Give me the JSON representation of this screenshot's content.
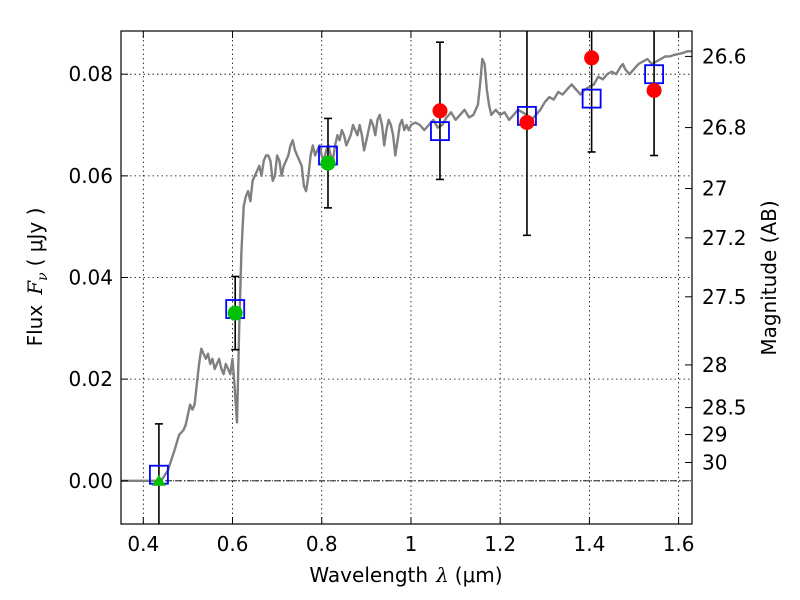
{
  "chart_data": {
    "type": "scatter",
    "xlabel_text": "Wavelength",
    "xlabel_math": "λ",
    "xlabel_unit": "(μm)",
    "ylabel_text": "Flux",
    "ylabel_math": "F",
    "ylabel_sub": "ν",
    "ylabel_unit": "( μJy )",
    "y2label": "Magnitude (AB)",
    "xlim": [
      0.35,
      1.63
    ],
    "ylim": [
      -0.0085,
      0.0885
    ],
    "xticks": [
      {
        "value": 0.4,
        "label": "0.4"
      },
      {
        "value": 0.6,
        "label": "0.6"
      },
      {
        "value": 0.8,
        "label": "0.8"
      },
      {
        "value": 1.0,
        "label": "1"
      },
      {
        "value": 1.2,
        "label": "1.2"
      },
      {
        "value": 1.4,
        "label": "1.4"
      },
      {
        "value": 1.6,
        "label": "1.6"
      }
    ],
    "yticks": [
      {
        "value": 0.0,
        "label": "0.00"
      },
      {
        "value": 0.02,
        "label": "0.02"
      },
      {
        "value": 0.04,
        "label": "0.04"
      },
      {
        "value": 0.06,
        "label": "0.06"
      },
      {
        "value": 0.08,
        "label": "0.08"
      }
    ],
    "magnitude_ticks": [
      {
        "flux": 0.0835,
        "label": "26.6"
      },
      {
        "flux": 0.0695,
        "label": "26.8"
      },
      {
        "flux": 0.0575,
        "label": "27"
      },
      {
        "flux": 0.0478,
        "label": "27.2"
      },
      {
        "flux": 0.0362,
        "label": "27.5"
      },
      {
        "flux": 0.0228,
        "label": "28"
      },
      {
        "flux": 0.0144,
        "label": "28.5"
      },
      {
        "flux": 0.0091,
        "label": "29"
      },
      {
        "flux": 0.0036,
        "label": "30"
      }
    ],
    "grid": true,
    "colors": {
      "model": "#808080",
      "model_box": "#0000ff",
      "observed_red": "#ff0000",
      "observed_green": "#00c000",
      "upper_limit": "#00c000",
      "error_bar": "#000000",
      "zero_line": "#000000"
    },
    "model_spectrum": [
      [
        0.35,
        0.0
      ],
      [
        0.44,
        0.0
      ],
      [
        0.455,
        0.002
      ],
      [
        0.47,
        0.006
      ],
      [
        0.48,
        0.009
      ],
      [
        0.49,
        0.01
      ],
      [
        0.495,
        0.011
      ],
      [
        0.5,
        0.013
      ],
      [
        0.505,
        0.015
      ],
      [
        0.51,
        0.014
      ],
      [
        0.515,
        0.015
      ],
      [
        0.52,
        0.019
      ],
      [
        0.525,
        0.023
      ],
      [
        0.53,
        0.026
      ],
      [
        0.535,
        0.025
      ],
      [
        0.54,
        0.024
      ],
      [
        0.545,
        0.025
      ],
      [
        0.55,
        0.023
      ],
      [
        0.555,
        0.024
      ],
      [
        0.56,
        0.022
      ],
      [
        0.565,
        0.023
      ],
      [
        0.57,
        0.024
      ],
      [
        0.575,
        0.022
      ],
      [
        0.58,
        0.021
      ],
      [
        0.585,
        0.023
      ],
      [
        0.59,
        0.022
      ],
      [
        0.595,
        0.021
      ],
      [
        0.6,
        0.024
      ],
      [
        0.605,
        0.018
      ],
      [
        0.61,
        0.0115
      ],
      [
        0.615,
        0.03
      ],
      [
        0.62,
        0.045
      ],
      [
        0.625,
        0.054
      ],
      [
        0.63,
        0.056
      ],
      [
        0.635,
        0.057
      ],
      [
        0.64,
        0.055
      ],
      [
        0.645,
        0.059
      ],
      [
        0.65,
        0.06
      ],
      [
        0.655,
        0.061
      ],
      [
        0.66,
        0.062
      ],
      [
        0.665,
        0.06
      ],
      [
        0.67,
        0.063
      ],
      [
        0.675,
        0.064
      ],
      [
        0.68,
        0.064
      ],
      [
        0.685,
        0.063
      ],
      [
        0.69,
        0.059
      ],
      [
        0.695,
        0.06
      ],
      [
        0.7,
        0.064
      ],
      [
        0.705,
        0.063
      ],
      [
        0.71,
        0.06
      ],
      [
        0.715,
        0.062
      ],
      [
        0.72,
        0.063
      ],
      [
        0.725,
        0.064
      ],
      [
        0.73,
        0.066
      ],
      [
        0.735,
        0.067
      ],
      [
        0.74,
        0.065
      ],
      [
        0.745,
        0.064
      ],
      [
        0.75,
        0.063
      ],
      [
        0.755,
        0.062
      ],
      [
        0.76,
        0.058
      ],
      [
        0.765,
        0.057
      ],
      [
        0.77,
        0.06
      ],
      [
        0.775,
        0.064
      ],
      [
        0.78,
        0.066
      ],
      [
        0.785,
        0.064
      ],
      [
        0.79,
        0.065
      ],
      [
        0.795,
        0.066
      ],
      [
        0.8,
        0.064
      ],
      [
        0.805,
        0.063
      ],
      [
        0.81,
        0.065
      ],
      [
        0.815,
        0.066
      ],
      [
        0.82,
        0.064
      ],
      [
        0.825,
        0.063
      ],
      [
        0.83,
        0.066
      ],
      [
        0.835,
        0.068
      ],
      [
        0.84,
        0.067
      ],
      [
        0.845,
        0.069
      ],
      [
        0.85,
        0.068
      ],
      [
        0.855,
        0.066
      ],
      [
        0.86,
        0.067
      ],
      [
        0.865,
        0.068
      ],
      [
        0.87,
        0.07
      ],
      [
        0.875,
        0.069
      ],
      [
        0.88,
        0.068
      ],
      [
        0.885,
        0.07
      ],
      [
        0.89,
        0.068
      ],
      [
        0.895,
        0.065
      ],
      [
        0.9,
        0.067
      ],
      [
        0.905,
        0.069
      ],
      [
        0.91,
        0.071
      ],
      [
        0.915,
        0.07
      ],
      [
        0.92,
        0.068
      ],
      [
        0.925,
        0.071
      ],
      [
        0.93,
        0.072
      ],
      [
        0.935,
        0.07
      ],
      [
        0.94,
        0.066
      ],
      [
        0.945,
        0.069
      ],
      [
        0.95,
        0.071
      ],
      [
        0.955,
        0.07
      ],
      [
        0.96,
        0.068
      ],
      [
        0.965,
        0.064
      ],
      [
        0.97,
        0.067
      ],
      [
        0.975,
        0.07
      ],
      [
        0.98,
        0.071
      ],
      [
        0.985,
        0.069
      ],
      [
        0.99,
        0.07
      ],
      [
        0.995,
        0.069
      ],
      [
        1.0,
        0.07
      ],
      [
        1.01,
        0.0705
      ],
      [
        1.02,
        0.07
      ],
      [
        1.03,
        0.069
      ],
      [
        1.04,
        0.07
      ],
      [
        1.05,
        0.071
      ],
      [
        1.06,
        0.0695
      ],
      [
        1.07,
        0.07
      ],
      [
        1.08,
        0.0715
      ],
      [
        1.09,
        0.0725
      ],
      [
        1.1,
        0.071
      ],
      [
        1.11,
        0.072
      ],
      [
        1.12,
        0.073
      ],
      [
        1.13,
        0.0715
      ],
      [
        1.14,
        0.072
      ],
      [
        1.15,
        0.074
      ],
      [
        1.155,
        0.078
      ],
      [
        1.16,
        0.083
      ],
      [
        1.165,
        0.082
      ],
      [
        1.17,
        0.077
      ],
      [
        1.175,
        0.074
      ],
      [
        1.18,
        0.072
      ],
      [
        1.19,
        0.073
      ],
      [
        1.2,
        0.072
      ],
      [
        1.21,
        0.0725
      ],
      [
        1.22,
        0.071
      ],
      [
        1.23,
        0.072
      ],
      [
        1.24,
        0.073
      ],
      [
        1.25,
        0.0725
      ],
      [
        1.26,
        0.072
      ],
      [
        1.27,
        0.071
      ],
      [
        1.28,
        0.072
      ],
      [
        1.29,
        0.073
      ],
      [
        1.3,
        0.0745
      ],
      [
        1.31,
        0.0755
      ],
      [
        1.32,
        0.075
      ],
      [
        1.33,
        0.0765
      ],
      [
        1.34,
        0.076
      ],
      [
        1.35,
        0.077
      ],
      [
        1.36,
        0.078
      ],
      [
        1.37,
        0.077
      ],
      [
        1.38,
        0.076
      ],
      [
        1.39,
        0.077
      ],
      [
        1.4,
        0.0775
      ],
      [
        1.41,
        0.078
      ],
      [
        1.42,
        0.0795
      ],
      [
        1.43,
        0.079
      ],
      [
        1.44,
        0.08
      ],
      [
        1.45,
        0.0805
      ],
      [
        1.46,
        0.08
      ],
      [
        1.47,
        0.0815
      ],
      [
        1.475,
        0.082
      ],
      [
        1.48,
        0.081
      ],
      [
        1.49,
        0.08
      ],
      [
        1.5,
        0.081
      ],
      [
        1.51,
        0.082
      ],
      [
        1.52,
        0.0825
      ],
      [
        1.53,
        0.083
      ],
      [
        1.54,
        0.082
      ],
      [
        1.55,
        0.0825
      ],
      [
        1.56,
        0.083
      ],
      [
        1.57,
        0.0835
      ],
      [
        1.58,
        0.0835
      ],
      [
        1.59,
        0.0838
      ],
      [
        1.6,
        0.084
      ],
      [
        1.61,
        0.0842
      ],
      [
        1.62,
        0.0845
      ],
      [
        1.63,
        0.0845
      ]
    ],
    "model_photometry": [
      {
        "x": 0.435,
        "y": 0.0012
      },
      {
        "x": 0.606,
        "y": 0.0338
      },
      {
        "x": 0.814,
        "y": 0.064
      },
      {
        "x": 1.065,
        "y": 0.0688
      },
      {
        "x": 1.26,
        "y": 0.0718
      },
      {
        "x": 1.405,
        "y": 0.0752
      },
      {
        "x": 1.545,
        "y": 0.08
      }
    ],
    "observations": [
      {
        "x": 0.435,
        "y": 0.0,
        "err": 0.0112,
        "marker": "triangle",
        "color": "green"
      },
      {
        "x": 0.606,
        "y": 0.033,
        "err": 0.0072,
        "marker": "circle",
        "color": "green"
      },
      {
        "x": 0.814,
        "y": 0.0625,
        "err": 0.0088,
        "marker": "circle",
        "color": "green"
      },
      {
        "x": 1.065,
        "y": 0.0728,
        "err": 0.0135,
        "marker": "circle",
        "color": "red"
      },
      {
        "x": 1.26,
        "y": 0.0705,
        "err": 0.0222,
        "marker": "circle",
        "color": "red"
      },
      {
        "x": 1.405,
        "y": 0.0832,
        "err": 0.0185,
        "marker": "circle",
        "color": "red"
      },
      {
        "x": 1.545,
        "y": 0.0768,
        "err": 0.0128,
        "marker": "circle",
        "color": "red"
      }
    ]
  }
}
